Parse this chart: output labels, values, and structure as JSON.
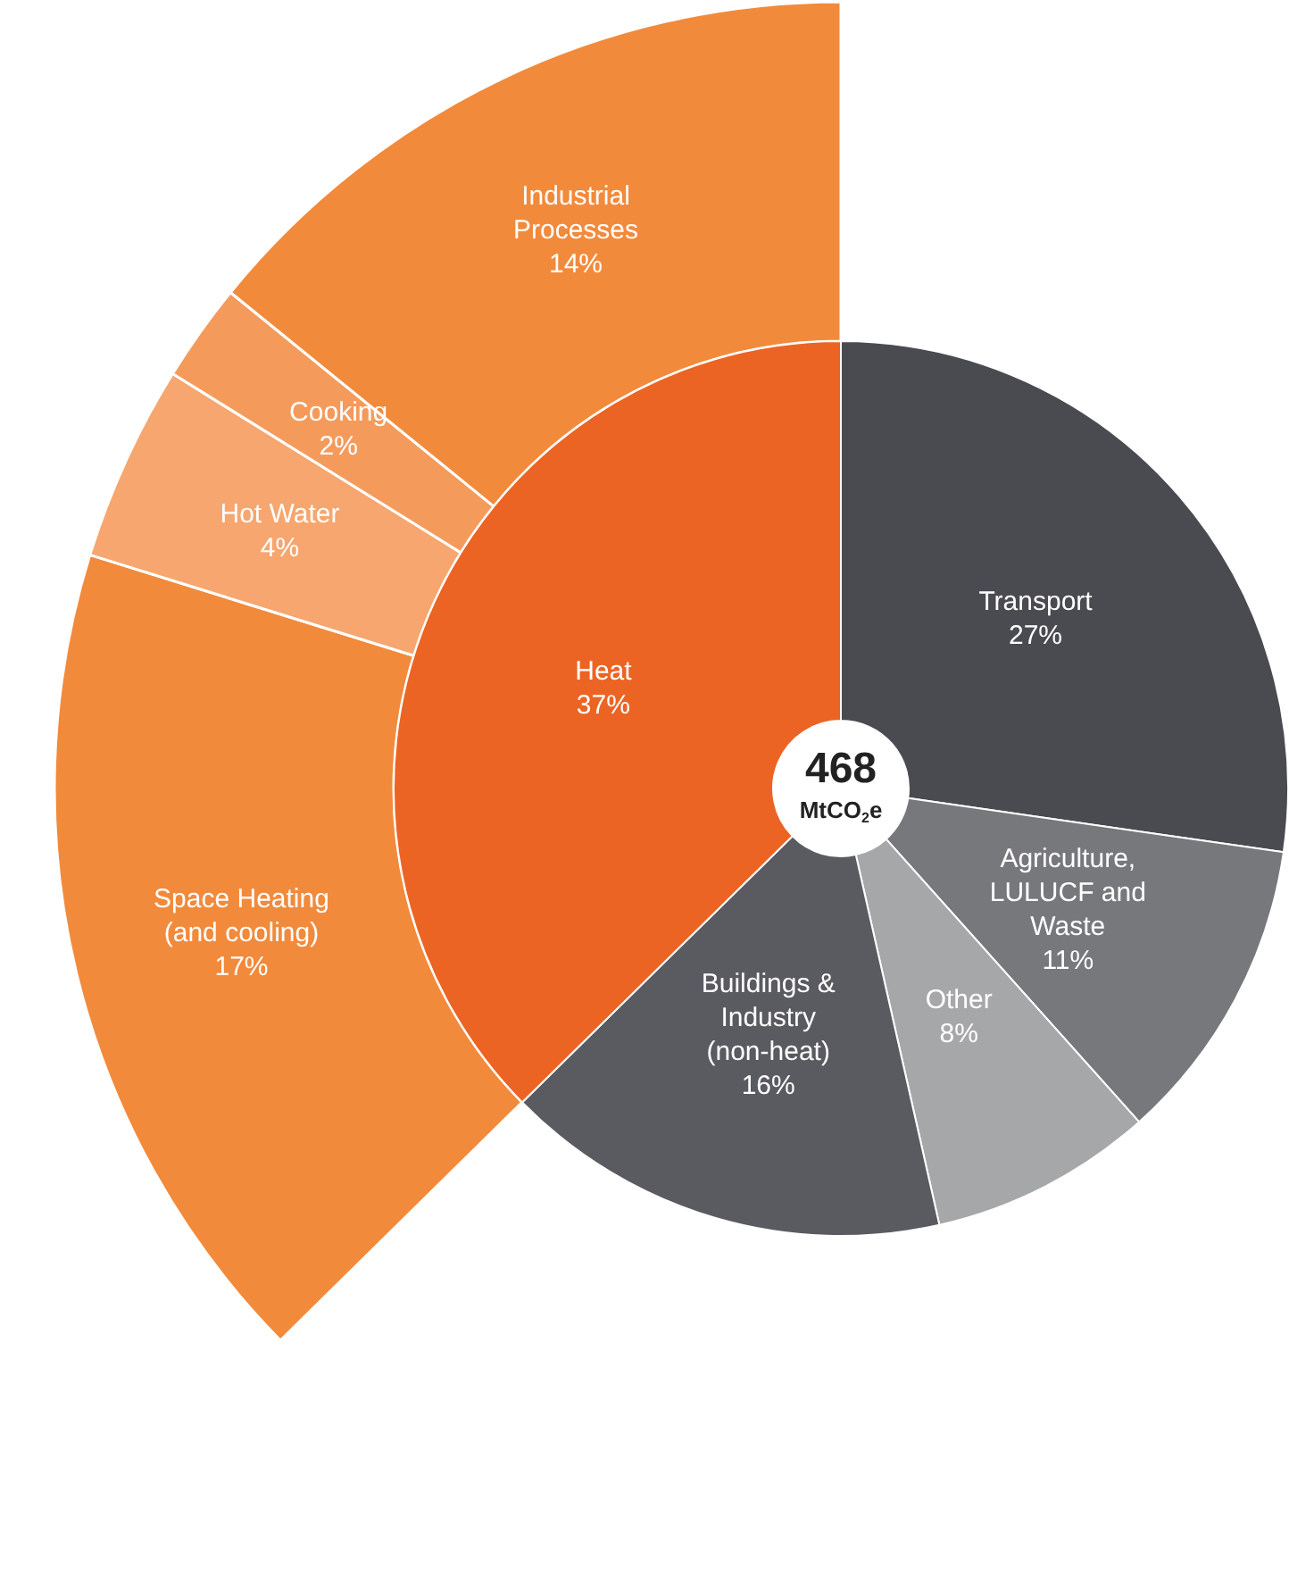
{
  "chart_data": [
    {
      "type": "donut",
      "categories": [
        "Transport",
        "Agriculture, LULUCF and Waste",
        "Other",
        "Buildings & Industry (non-heat)",
        "Heat"
      ],
      "values": [
        27,
        11,
        8,
        16,
        37
      ],
      "colors": [
        "#4a4b50",
        "#77787c",
        "#a6a7a9",
        "#5a5b60",
        "#ec6424"
      ],
      "value_labels": [
        "27%",
        "11%",
        "8%",
        "16%",
        "37%"
      ],
      "annotations": [
        "468 MtCO$_{2}$e"
      ],
      "legend": false
    },
    {
      "type": "donut",
      "categories": [
        "Space Heating (and cooling)",
        "Hot Water",
        "Cooking",
        "Industrial Processes"
      ],
      "values": [
        17,
        4,
        2,
        14
      ],
      "colors": [
        "#f28a3c",
        "#f6a66e",
        "#f49b5c",
        "#f28a3c"
      ],
      "value_labels": [
        "17%",
        "4%",
        "2%",
        "14%"
      ],
      "legend": false
    }
  ]
}
